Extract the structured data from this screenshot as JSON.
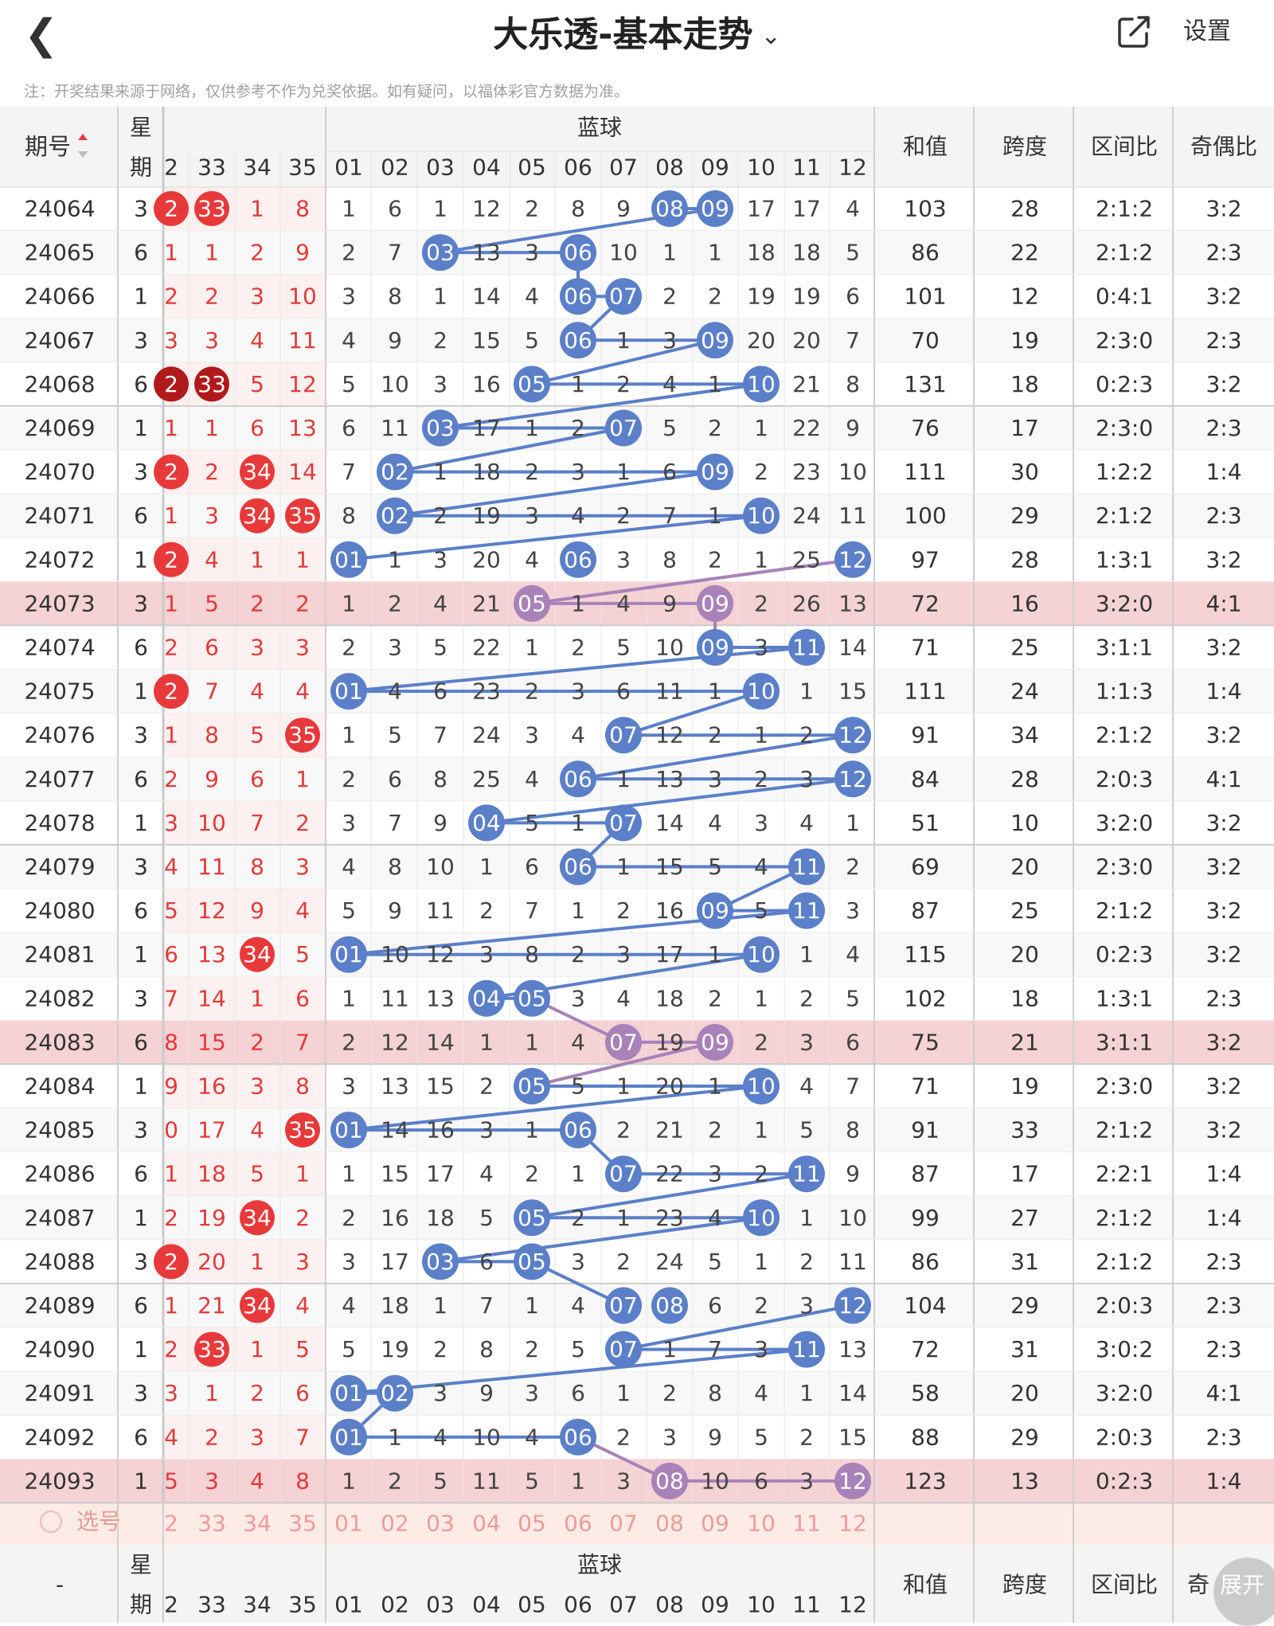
{
  "header": {
    "back_icon": "chevron-left-icon",
    "title": "大乐透-基本走势",
    "title_dropdown_icon": "chevron-down-icon",
    "share_icon": "share-icon",
    "settings_label": "设置"
  },
  "note": "注：开奖结果来源于网络，仅供参考不作为兑奖依据。如有疑问，以福体彩官方数据为准。",
  "columns": {
    "issue": "期号",
    "weekday_top": "星",
    "weekday_bottom": "期",
    "blue_group": "蓝球",
    "red_numbers": [
      "2",
      "33",
      "34",
      "35"
    ],
    "blue_numbers": [
      "01",
      "02",
      "03",
      "04",
      "05",
      "06",
      "07",
      "08",
      "09",
      "10",
      "11",
      "12"
    ],
    "sum": "和值",
    "span": "跨度",
    "zone_ratio": "区间比",
    "odd_even": "奇偶比"
  },
  "rows": [
    {
      "issue": "24064",
      "week": "3",
      "red": [
        "2",
        "33",
        "1",
        "8"
      ],
      "red_hit": [
        1,
        1,
        0,
        0
      ],
      "blue": [
        "1",
        "6",
        "1",
        "12",
        "2",
        "8",
        "9",
        "08",
        "09",
        "17",
        "17",
        "4"
      ],
      "sum": "103",
      "span": "28",
      "zone": "2:1:2",
      "oe": "3:2"
    },
    {
      "issue": "24065",
      "week": "6",
      "red": [
        "1",
        "1",
        "2",
        "9"
      ],
      "red_hit": [
        0,
        0,
        0,
        0
      ],
      "blue": [
        "2",
        "7",
        "03",
        "13",
        "3",
        "06",
        "10",
        "1",
        "1",
        "18",
        "18",
        "5"
      ],
      "sum": "86",
      "span": "22",
      "zone": "2:1:2",
      "oe": "2:3"
    },
    {
      "issue": "24066",
      "week": "1",
      "red": [
        "2",
        "2",
        "3",
        "10"
      ],
      "red_hit": [
        0,
        0,
        0,
        0
      ],
      "blue": [
        "3",
        "8",
        "1",
        "14",
        "4",
        "06",
        "07",
        "2",
        "2",
        "19",
        "19",
        "6"
      ],
      "sum": "101",
      "span": "12",
      "zone": "0:4:1",
      "oe": "3:2"
    },
    {
      "issue": "24067",
      "week": "3",
      "red": [
        "3",
        "3",
        "4",
        "11"
      ],
      "red_hit": [
        0,
        0,
        0,
        0
      ],
      "blue": [
        "4",
        "9",
        "2",
        "15",
        "5",
        "06",
        "1",
        "3",
        "09",
        "20",
        "20",
        "7"
      ],
      "sum": "70",
      "span": "19",
      "zone": "2:3:0",
      "oe": "2:3"
    },
    {
      "issue": "24068",
      "week": "6",
      "red": [
        "2",
        "33",
        "5",
        "12"
      ],
      "red_hit": [
        2,
        2,
        0,
        0
      ],
      "blue": [
        "5",
        "10",
        "3",
        "16",
        "05",
        "1",
        "2",
        "4",
        "1",
        "10",
        "21",
        "8"
      ],
      "sum": "131",
      "span": "18",
      "zone": "0:2:3",
      "oe": "3:2"
    },
    {
      "issue": "24069",
      "week": "1",
      "red": [
        "1",
        "1",
        "6",
        "13"
      ],
      "red_hit": [
        0,
        0,
        0,
        0
      ],
      "blue": [
        "6",
        "11",
        "03",
        "17",
        "1",
        "2",
        "07",
        "5",
        "2",
        "1",
        "22",
        "9"
      ],
      "sum": "76",
      "span": "17",
      "zone": "2:3:0",
      "oe": "2:3"
    },
    {
      "issue": "24070",
      "week": "3",
      "red": [
        "2",
        "2",
        "34",
        "14"
      ],
      "red_hit": [
        1,
        0,
        1,
        0
      ],
      "blue": [
        "7",
        "02",
        "1",
        "18",
        "2",
        "3",
        "1",
        "6",
        "09",
        "2",
        "23",
        "10"
      ],
      "sum": "111",
      "span": "30",
      "zone": "1:2:2",
      "oe": "1:4"
    },
    {
      "issue": "24071",
      "week": "6",
      "red": [
        "1",
        "3",
        "34",
        "35"
      ],
      "red_hit": [
        0,
        0,
        1,
        1
      ],
      "blue": [
        "8",
        "02",
        "2",
        "19",
        "3",
        "4",
        "2",
        "7",
        "1",
        "10",
        "24",
        "11"
      ],
      "sum": "100",
      "span": "29",
      "zone": "2:1:2",
      "oe": "2:3"
    },
    {
      "issue": "24072",
      "week": "1",
      "red": [
        "2",
        "4",
        "1",
        "1"
      ],
      "red_hit": [
        1,
        0,
        0,
        0
      ],
      "blue": [
        "01",
        "1",
        "3",
        "20",
        "4",
        "06",
        "3",
        "8",
        "2",
        "1",
        "25",
        "12"
      ],
      "sum": "97",
      "span": "28",
      "zone": "1:3:1",
      "oe": "3:2"
    },
    {
      "issue": "24073",
      "week": "3",
      "red": [
        "1",
        "5",
        "2",
        "2"
      ],
      "red_hit": [
        0,
        0,
        0,
        0
      ],
      "blue": [
        "1",
        "2",
        "4",
        "21",
        "05",
        "1",
        "4",
        "9",
        "09",
        "2",
        "26",
        "13"
      ],
      "sum": "72",
      "span": "16",
      "zone": "3:2:0",
      "oe": "4:1",
      "hl": true
    },
    {
      "issue": "24074",
      "week": "6",
      "red": [
        "2",
        "6",
        "3",
        "3"
      ],
      "red_hit": [
        0,
        0,
        0,
        0
      ],
      "blue": [
        "2",
        "3",
        "5",
        "22",
        "1",
        "2",
        "5",
        "10",
        "09",
        "3",
        "11",
        "14"
      ],
      "sum": "71",
      "span": "25",
      "zone": "3:1:1",
      "oe": "3:2"
    },
    {
      "issue": "24075",
      "week": "1",
      "red": [
        "2",
        "7",
        "4",
        "4"
      ],
      "red_hit": [
        1,
        0,
        0,
        0
      ],
      "blue": [
        "01",
        "4",
        "6",
        "23",
        "2",
        "3",
        "6",
        "11",
        "1",
        "10",
        "1",
        "15"
      ],
      "sum": "111",
      "span": "24",
      "zone": "1:1:3",
      "oe": "1:4"
    },
    {
      "issue": "24076",
      "week": "3",
      "red": [
        "1",
        "8",
        "5",
        "35"
      ],
      "red_hit": [
        0,
        0,
        0,
        1
      ],
      "blue": [
        "1",
        "5",
        "7",
        "24",
        "3",
        "4",
        "07",
        "12",
        "2",
        "1",
        "2",
        "12"
      ],
      "sum": "91",
      "span": "34",
      "zone": "2:1:2",
      "oe": "3:2"
    },
    {
      "issue": "24077",
      "week": "6",
      "red": [
        "2",
        "9",
        "6",
        "1"
      ],
      "red_hit": [
        0,
        0,
        0,
        0
      ],
      "blue": [
        "2",
        "6",
        "8",
        "25",
        "4",
        "06",
        "1",
        "13",
        "3",
        "2",
        "3",
        "12"
      ],
      "sum": "84",
      "span": "28",
      "zone": "2:0:3",
      "oe": "4:1"
    },
    {
      "issue": "24078",
      "week": "1",
      "red": [
        "3",
        "10",
        "7",
        "2"
      ],
      "red_hit": [
        0,
        0,
        0,
        0
      ],
      "blue": [
        "3",
        "7",
        "9",
        "04",
        "5",
        "1",
        "07",
        "14",
        "4",
        "3",
        "4",
        "1"
      ],
      "sum": "51",
      "span": "10",
      "zone": "3:2:0",
      "oe": "3:2"
    },
    {
      "issue": "24079",
      "week": "3",
      "red": [
        "4",
        "11",
        "8",
        "3"
      ],
      "red_hit": [
        0,
        0,
        0,
        0
      ],
      "blue": [
        "4",
        "8",
        "10",
        "1",
        "6",
        "06",
        "1",
        "15",
        "5",
        "4",
        "11",
        "2"
      ],
      "sum": "69",
      "span": "20",
      "zone": "2:3:0",
      "oe": "3:2"
    },
    {
      "issue": "24080",
      "week": "6",
      "red": [
        "5",
        "12",
        "9",
        "4"
      ],
      "red_hit": [
        0,
        0,
        0,
        0
      ],
      "blue": [
        "5",
        "9",
        "11",
        "2",
        "7",
        "1",
        "2",
        "16",
        "09",
        "5",
        "11",
        "3"
      ],
      "sum": "87",
      "span": "25",
      "zone": "2:1:2",
      "oe": "3:2"
    },
    {
      "issue": "24081",
      "week": "1",
      "red": [
        "6",
        "13",
        "34",
        "5"
      ],
      "red_hit": [
        0,
        0,
        1,
        0
      ],
      "blue": [
        "01",
        "10",
        "12",
        "3",
        "8",
        "2",
        "3",
        "17",
        "1",
        "10",
        "1",
        "4"
      ],
      "sum": "115",
      "span": "20",
      "zone": "0:2:3",
      "oe": "3:2"
    },
    {
      "issue": "24082",
      "week": "3",
      "red": [
        "7",
        "14",
        "1",
        "6"
      ],
      "red_hit": [
        0,
        0,
        0,
        0
      ],
      "blue": [
        "1",
        "11",
        "13",
        "04",
        "05",
        "3",
        "4",
        "18",
        "2",
        "1",
        "2",
        "5"
      ],
      "sum": "102",
      "span": "18",
      "zone": "1:3:1",
      "oe": "2:3"
    },
    {
      "issue": "24083",
      "week": "6",
      "red": [
        "8",
        "15",
        "2",
        "7"
      ],
      "red_hit": [
        0,
        0,
        0,
        0
      ],
      "blue": [
        "2",
        "12",
        "14",
        "1",
        "1",
        "4",
        "07",
        "19",
        "09",
        "2",
        "3",
        "6"
      ],
      "sum": "75",
      "span": "21",
      "zone": "3:1:1",
      "oe": "3:2",
      "hl": true
    },
    {
      "issue": "24084",
      "week": "1",
      "red": [
        "9",
        "16",
        "3",
        "8"
      ],
      "red_hit": [
        0,
        0,
        0,
        0
      ],
      "blue": [
        "3",
        "13",
        "15",
        "2",
        "05",
        "5",
        "1",
        "20",
        "1",
        "10",
        "4",
        "7"
      ],
      "sum": "71",
      "span": "19",
      "zone": "2:3:0",
      "oe": "3:2"
    },
    {
      "issue": "24085",
      "week": "3",
      "red": [
        "0",
        "17",
        "4",
        "35"
      ],
      "red_hit": [
        0,
        0,
        0,
        1
      ],
      "blue": [
        "01",
        "14",
        "16",
        "3",
        "1",
        "06",
        "2",
        "21",
        "2",
        "1",
        "5",
        "8"
      ],
      "sum": "91",
      "span": "33",
      "zone": "2:1:2",
      "oe": "3:2"
    },
    {
      "issue": "24086",
      "week": "6",
      "red": [
        "1",
        "18",
        "5",
        "1"
      ],
      "red_hit": [
        0,
        0,
        0,
        0
      ],
      "blue": [
        "1",
        "15",
        "17",
        "4",
        "2",
        "1",
        "07",
        "22",
        "3",
        "2",
        "11",
        "9"
      ],
      "sum": "87",
      "span": "17",
      "zone": "2:2:1",
      "oe": "1:4"
    },
    {
      "issue": "24087",
      "week": "1",
      "red": [
        "2",
        "19",
        "34",
        "2"
      ],
      "red_hit": [
        0,
        0,
        1,
        0
      ],
      "blue": [
        "2",
        "16",
        "18",
        "5",
        "05",
        "2",
        "1",
        "23",
        "4",
        "10",
        "1",
        "10"
      ],
      "sum": "99",
      "span": "27",
      "zone": "2:1:2",
      "oe": "1:4"
    },
    {
      "issue": "24088",
      "week": "3",
      "red": [
        "2",
        "20",
        "1",
        "3"
      ],
      "red_hit": [
        1,
        0,
        0,
        0
      ],
      "blue": [
        "3",
        "17",
        "03",
        "6",
        "05",
        "3",
        "2",
        "24",
        "5",
        "1",
        "2",
        "11"
      ],
      "sum": "86",
      "span": "31",
      "zone": "2:1:2",
      "oe": "2:3"
    },
    {
      "issue": "24089",
      "week": "6",
      "red": [
        "1",
        "21",
        "34",
        "4"
      ],
      "red_hit": [
        0,
        0,
        1,
        0
      ],
      "blue": [
        "4",
        "18",
        "1",
        "7",
        "1",
        "4",
        "07",
        "08",
        "6",
        "2",
        "3",
        "12"
      ],
      "sum": "104",
      "span": "29",
      "zone": "2:0:3",
      "oe": "2:3"
    },
    {
      "issue": "24090",
      "week": "1",
      "red": [
        "2",
        "33",
        "1",
        "5"
      ],
      "red_hit": [
        0,
        1,
        0,
        0
      ],
      "blue": [
        "5",
        "19",
        "2",
        "8",
        "2",
        "5",
        "07",
        "1",
        "7",
        "3",
        "11",
        "13"
      ],
      "sum": "72",
      "span": "31",
      "zone": "3:0:2",
      "oe": "2:3"
    },
    {
      "issue": "24091",
      "week": "3",
      "red": [
        "3",
        "1",
        "2",
        "6"
      ],
      "red_hit": [
        0,
        0,
        0,
        0
      ],
      "blue": [
        "01",
        "02",
        "3",
        "9",
        "3",
        "6",
        "1",
        "2",
        "8",
        "4",
        "1",
        "14"
      ],
      "sum": "58",
      "span": "20",
      "zone": "3:2:0",
      "oe": "4:1"
    },
    {
      "issue": "24092",
      "week": "6",
      "red": [
        "4",
        "2",
        "3",
        "7"
      ],
      "red_hit": [
        0,
        0,
        0,
        0
      ],
      "blue": [
        "01",
        "1",
        "4",
        "10",
        "4",
        "06",
        "2",
        "3",
        "9",
        "5",
        "2",
        "15"
      ],
      "sum": "88",
      "span": "29",
      "zone": "2:0:3",
      "oe": "2:3"
    },
    {
      "issue": "24093",
      "week": "1",
      "red": [
        "5",
        "3",
        "4",
        "8"
      ],
      "red_hit": [
        0,
        0,
        0,
        0
      ],
      "blue": [
        "1",
        "2",
        "5",
        "11",
        "5",
        "1",
        "3",
        "08",
        "10",
        "6",
        "3",
        "12"
      ],
      "sum": "123",
      "span": "13",
      "zone": "0:2:3",
      "oe": "1:4",
      "hl": true
    }
  ],
  "select_row": {
    "label": "选号",
    "red": [
      "2",
      "33",
      "34",
      "35"
    ],
    "blue": [
      "01",
      "02",
      "03",
      "04",
      "05",
      "06",
      "07",
      "08",
      "09",
      "10",
      "11",
      "12"
    ]
  },
  "footer_header": {
    "issue": "-",
    "weekday_top": "星",
    "weekday_bottom": "期",
    "blue_group": "蓝球",
    "sum": "和值",
    "span": "跨度",
    "zone_ratio": "区间比",
    "odd_even": "奇"
  },
  "expand_label": "展开",
  "colors": {
    "blue_ball": "#5b7fc8",
    "blue_ball_highlight": "#a882b8",
    "red_ball": "#e8393a",
    "red_ball_dark": "#b01a1a",
    "red_text": "#e23a3a",
    "highlight_row": "#f5d2d4",
    "header_bg": "#f4f4f4"
  }
}
